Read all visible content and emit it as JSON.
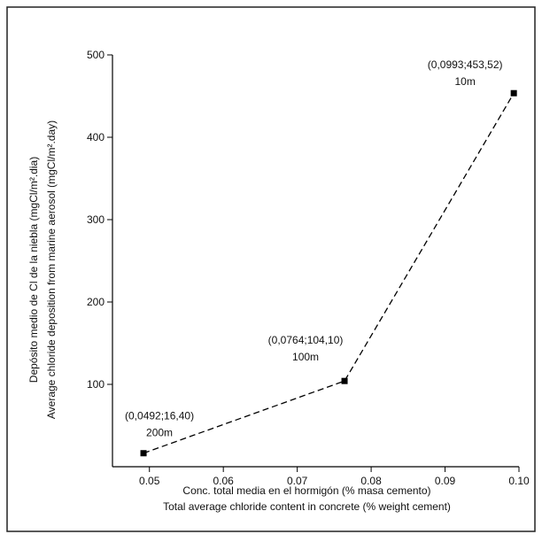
{
  "chart_data": {
    "type": "line",
    "x_label": [
      "Conc. total media en el hormigón (% masa cemento)",
      "Total average chloride content in concrete (% weight cement)"
    ],
    "y_label": [
      "Depósito medio de Cl de la niebla (mgCl/m².dia)",
      "Average chloride deposition from marine aerosol (mgCl/m².day)"
    ],
    "x": [
      0.0492,
      0.0764,
      0.0993
    ],
    "series": [
      {
        "color": "#000000",
        "values": [
          16.4,
          104.1,
          453.52
        ],
        "value_labels": [
          "(0,0492;16,40)",
          "(0,0764;104,10)",
          "(0,0993;453,52)"
        ],
        "point_labels": [
          "200m",
          "100m",
          "10m"
        ]
      }
    ],
    "xlim": [
      0.045,
      0.1
    ],
    "xticks": [
      0.05,
      0.06,
      0.07,
      0.08,
      0.09,
      {
        "value": 0.1,
        "label": "0.10"
      }
    ],
    "ylim": [
      0,
      500
    ],
    "yticks": [
      100,
      200,
      300,
      400,
      500
    ],
    "line_style": "dashed",
    "marker": "square"
  }
}
